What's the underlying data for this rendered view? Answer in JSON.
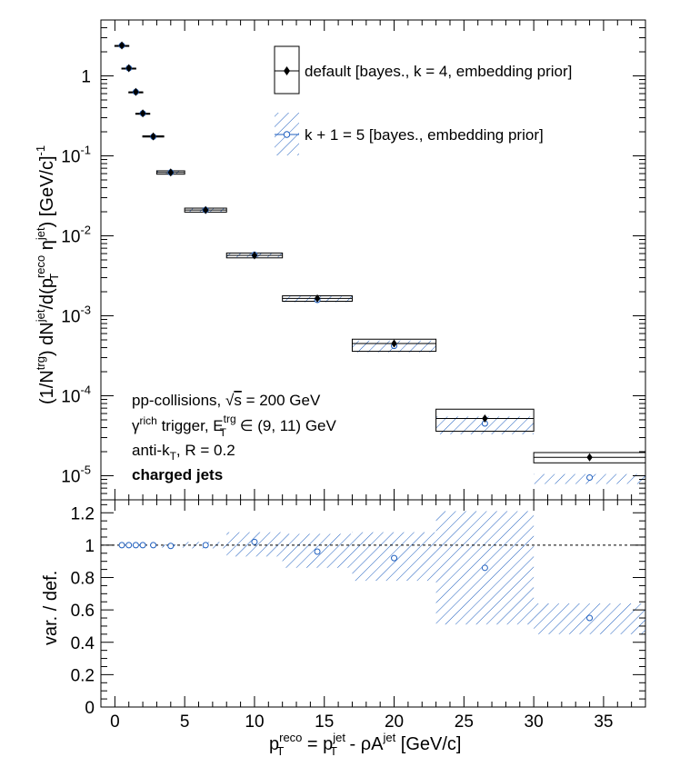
{
  "colors": {
    "default_series": "#000000",
    "variation_series": "#1f5fbf",
    "background": "#ffffff",
    "reference_line": "#000000"
  },
  "legend": {
    "default_label": "default [bayes., k = 4, embedding prior]",
    "variation_label": "k + 1 = 5 [bayes., embedding prior]"
  },
  "annotations": {
    "line1_prefix": "pp-collisions, ",
    "line1_sqrt": "√",
    "line1_s": "s",
    "line1_suffix": " = 200 GeV",
    "line2_gamma": "γ",
    "line2_rich": "rich",
    "line2_mid": " trigger, E",
    "line2_sup": "trg",
    "line2_sub": "T",
    "line2_suffix": " ∈ (9, 11) GeV",
    "line3_prefix": "anti-k",
    "line3_sub": "T",
    "line3_suffix": ", R = 0.2",
    "line4": "charged jets"
  },
  "axes": {
    "x_label": {
      "p": "p",
      "reco_sup": "reco",
      "T_sub": "T",
      "eq": " = p",
      "jet_sup": "jet",
      "T_sub2": "T",
      "rest": " - ρA",
      "jet_sup2": "jet",
      "unit": " [GeV/c]"
    },
    "top_y_label": {
      "a": "(1/N",
      "trg": "trg",
      "b": ") dN",
      "jet": "jet",
      "c": "/d(p",
      "reco": "reco",
      "T": "T",
      "d": " η",
      "jet2": "jet",
      "e": ") [GeV/c]",
      "m1": "-1"
    },
    "bottom_y_label": "var. / def.",
    "x_ticks": [
      "0",
      "5",
      "10",
      "15",
      "20",
      "25",
      "30",
      "35"
    ],
    "top_y_ticks": [
      {
        "base": "10",
        "exp": "-5"
      },
      {
        "base": "10",
        "exp": "-4"
      },
      {
        "base": "10",
        "exp": "-3"
      },
      {
        "base": "10",
        "exp": "-2"
      },
      {
        "base": "10",
        "exp": "-1"
      },
      {
        "base": "1",
        "exp": ""
      }
    ],
    "bottom_y_ticks": [
      "0",
      "0.2",
      "0.4",
      "0.6",
      "0.8",
      "1",
      "1.2"
    ]
  },
  "chart_data": [
    {
      "type": "scatter",
      "panel": "top",
      "y_scale": "log",
      "xlim": [
        -1,
        38
      ],
      "ylim": [
        5e-06,
        5
      ],
      "series": [
        {
          "name": "default [bayes., k = 4, embedding prior]",
          "marker": "filled-diamond",
          "points": [
            {
              "x": 0.5,
              "y": 2.4,
              "x_lo": 0.0,
              "x_hi": 1.0,
              "sys_lo": 2.4,
              "sys_hi": 2.4
            },
            {
              "x": 1.0,
              "y": 1.25,
              "x_lo": 0.5,
              "x_hi": 1.5,
              "sys_lo": 1.25,
              "sys_hi": 1.25
            },
            {
              "x": 1.5,
              "y": 0.63,
              "x_lo": 1.0,
              "x_hi": 2.0,
              "sys_lo": 0.63,
              "sys_hi": 0.63
            },
            {
              "x": 2.0,
              "y": 0.34,
              "x_lo": 1.5,
              "x_hi": 2.5,
              "sys_lo": 0.34,
              "sys_hi": 0.34
            },
            {
              "x": 2.75,
              "y": 0.175,
              "x_lo": 2.0,
              "x_hi": 3.5,
              "sys_lo": 0.172,
              "sys_hi": 0.178
            },
            {
              "x": 4.0,
              "y": 0.062,
              "x_lo": 3.0,
              "x_hi": 5.0,
              "sys_lo": 0.059,
              "sys_hi": 0.065
            },
            {
              "x": 6.5,
              "y": 0.021,
              "x_lo": 5.0,
              "x_hi": 8.0,
              "sys_lo": 0.0198,
              "sys_hi": 0.0222
            },
            {
              "x": 10.0,
              "y": 0.0057,
              "x_lo": 8.0,
              "x_hi": 12.0,
              "sys_lo": 0.0053,
              "sys_hi": 0.0061
            },
            {
              "x": 14.5,
              "y": 0.00165,
              "x_lo": 12.0,
              "x_hi": 17.0,
              "sys_lo": 0.00152,
              "sys_hi": 0.00178
            },
            {
              "x": 20.0,
              "y": 0.00045,
              "x_lo": 17.0,
              "x_hi": 23.0,
              "sys_lo": 0.00036,
              "sys_hi": 0.00051
            },
            {
              "x": 26.5,
              "y": 5.2e-05,
              "x_lo": 23.0,
              "x_hi": 30.0,
              "sys_lo": 3.6e-05,
              "sys_hi": 6.8e-05
            },
            {
              "x": 34.0,
              "y": 1.7e-05,
              "x_lo": 30.0,
              "x_hi": 38.0,
              "sys_lo": 1.45e-05,
              "sys_hi": 1.95e-05
            }
          ]
        },
        {
          "name": "k + 1 = 5 [bayes., embedding prior]",
          "marker": "open-circle",
          "points": [
            {
              "x": 0.5,
              "y": 2.4,
              "x_lo": 0.0,
              "x_hi": 1.0,
              "sys_lo": 2.4,
              "sys_hi": 2.4
            },
            {
              "x": 1.0,
              "y": 1.25,
              "x_lo": 0.5,
              "x_hi": 1.5,
              "sys_lo": 1.25,
              "sys_hi": 1.25
            },
            {
              "x": 1.5,
              "y": 0.63,
              "x_lo": 1.0,
              "x_hi": 2.0,
              "sys_lo": 0.63,
              "sys_hi": 0.63
            },
            {
              "x": 2.0,
              "y": 0.34,
              "x_lo": 1.5,
              "x_hi": 2.5,
              "sys_lo": 0.34,
              "sys_hi": 0.34
            },
            {
              "x": 2.75,
              "y": 0.174,
              "x_lo": 2.0,
              "x_hi": 3.5,
              "sys_lo": 0.171,
              "sys_hi": 0.177
            },
            {
              "x": 4.0,
              "y": 0.062,
              "x_lo": 3.0,
              "x_hi": 5.0,
              "sys_lo": 0.06,
              "sys_hi": 0.064
            },
            {
              "x": 6.5,
              "y": 0.021,
              "x_lo": 5.0,
              "x_hi": 8.0,
              "sys_lo": 0.02,
              "sys_hi": 0.022
            },
            {
              "x": 10.0,
              "y": 0.0058,
              "x_lo": 8.0,
              "x_hi": 12.0,
              "sys_lo": 0.0054,
              "sys_hi": 0.0061
            },
            {
              "x": 14.5,
              "y": 0.00158,
              "x_lo": 12.0,
              "x_hi": 17.0,
              "sys_lo": 0.00148,
              "sys_hi": 0.00175
            },
            {
              "x": 20.0,
              "y": 0.00042,
              "x_lo": 17.0,
              "x_hi": 23.0,
              "sys_lo": 0.00035,
              "sys_hi": 0.00049
            },
            {
              "x": 26.5,
              "y": 4.5e-05,
              "x_lo": 23.0,
              "x_hi": 30.0,
              "sys_lo": 3.3e-05,
              "sys_hi": 5.5e-05
            },
            {
              "x": 34.0,
              "y": 9.5e-06,
              "x_lo": 30.0,
              "x_hi": 38.0,
              "sys_lo": 7.9e-06,
              "sys_hi": 1.05e-05
            }
          ]
        }
      ]
    },
    {
      "type": "scatter",
      "panel": "bottom",
      "xlim": [
        -1,
        38
      ],
      "ylim": [
        0,
        1.28
      ],
      "reference_line_y": 1,
      "series": [
        {
          "name": "k + 1 = 5 [bayes., embedding prior]",
          "marker": "open-circle",
          "points": [
            {
              "x": 0.5,
              "y": 1.0,
              "x_lo": 0.0,
              "x_hi": 1.0,
              "band_lo": 1.0,
              "band_hi": 1.0
            },
            {
              "x": 1.0,
              "y": 1.0,
              "x_lo": 0.5,
              "x_hi": 1.5,
              "band_lo": 1.0,
              "band_hi": 1.0
            },
            {
              "x": 1.5,
              "y": 1.0,
              "x_lo": 1.0,
              "x_hi": 2.0,
              "band_lo": 1.0,
              "band_hi": 1.0
            },
            {
              "x": 2.0,
              "y": 1.0,
              "x_lo": 1.5,
              "x_hi": 2.5,
              "band_lo": 1.0,
              "band_hi": 1.0
            },
            {
              "x": 2.75,
              "y": 1.0,
              "x_lo": 2.0,
              "x_hi": 3.5,
              "band_lo": 0.99,
              "band_hi": 1.01
            },
            {
              "x": 4.0,
              "y": 0.995,
              "x_lo": 3.0,
              "x_hi": 5.0,
              "band_lo": 0.985,
              "band_hi": 1.005
            },
            {
              "x": 6.5,
              "y": 1.0,
              "x_lo": 5.0,
              "x_hi": 8.0,
              "band_lo": 0.98,
              "band_hi": 1.02
            },
            {
              "x": 10.0,
              "y": 1.02,
              "x_lo": 8.0,
              "x_hi": 12.0,
              "band_lo": 0.93,
              "band_hi": 1.08
            },
            {
              "x": 14.5,
              "y": 0.96,
              "x_lo": 12.0,
              "x_hi": 17.0,
              "band_lo": 0.86,
              "band_hi": 1.07
            },
            {
              "x": 20.0,
              "y": 0.92,
              "x_lo": 17.0,
              "x_hi": 23.0,
              "band_lo": 0.78,
              "band_hi": 1.08
            },
            {
              "x": 26.5,
              "y": 0.86,
              "x_lo": 23.0,
              "x_hi": 30.0,
              "band_lo": 0.51,
              "band_hi": 1.21
            },
            {
              "x": 34.0,
              "y": 0.55,
              "x_lo": 30.0,
              "x_hi": 38.0,
              "band_lo": 0.45,
              "band_hi": 0.64
            }
          ]
        }
      ]
    }
  ]
}
